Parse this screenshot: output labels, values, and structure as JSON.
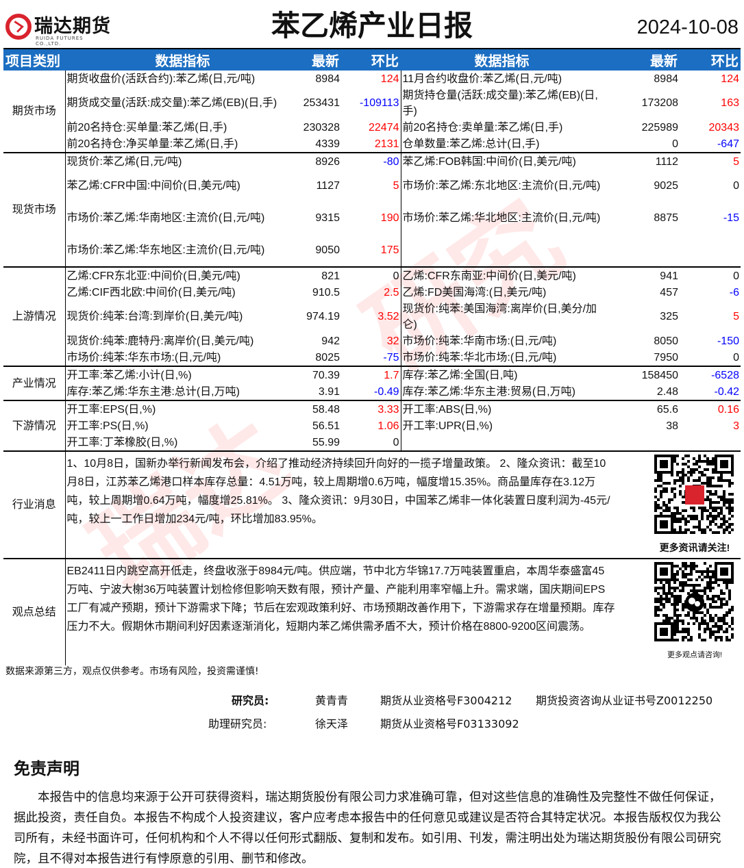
{
  "header": {
    "logo_cn": "瑞达期货",
    "logo_en": "RUIDA FUTURES CO.,LTD.",
    "title": "苯乙烯产业日报",
    "date": "2024-10-08"
  },
  "columns": [
    "项目类别",
    "数据指标",
    "最新",
    "环比",
    "数据指标",
    "最新",
    "环比"
  ],
  "colors": {
    "header_bg": "#1b6ec2",
    "up": "#ff0000",
    "down": "#0000ff"
  },
  "sections": [
    {
      "category": "期货市场",
      "rows": [
        {
          "l": [
            "期货收盘价(活跃合约):苯乙烯(日,元/吨)",
            "8984",
            "124"
          ],
          "r": [
            "11月合约收盘价:苯乙烯(日,元/吨)",
            "8984",
            "124"
          ]
        },
        {
          "l": [
            "期货成交量(活跃:成交量):苯乙烯(EB)(日,手)",
            "253431",
            "-109113"
          ],
          "r": [
            "期货持仓量(活跃:成交量):苯乙烯(EB)(日,手)",
            "173208",
            "163"
          ],
          "tall": true
        },
        {
          "l": [
            "前20名持仓:买单量:苯乙烯(日,手)",
            "230328",
            "22474"
          ],
          "r": [
            "前20名持仓:卖单量:苯乙烯(日,手)",
            "225989",
            "20343"
          ]
        },
        {
          "l": [
            "前20名持仓:净买单量:苯乙烯(日,手)",
            "4339",
            "2131"
          ],
          "r": [
            "仓单数量:苯乙烯:总计(日,手)",
            "0",
            "-647"
          ]
        }
      ]
    },
    {
      "category": "现货市场",
      "rows": [
        {
          "l": [
            "现货价:苯乙烯(日,元/吨)",
            "8926",
            "-80"
          ],
          "r": [
            "苯乙烯:FOB韩国:中间价(日,美元/吨)",
            "1112",
            "5"
          ]
        },
        {
          "l": [
            "苯乙烯:CFR中国:中间价(日,美元/吨)",
            "1127",
            "5"
          ],
          "r": [
            "市场价:苯乙烯:东北地区:主流价(日,元/吨)",
            "9025",
            "0"
          ],
          "tall": true
        },
        {
          "l": [
            "市场价:苯乙烯:华南地区:主流价(日,元/吨)",
            "9315",
            "190"
          ],
          "r": [
            "市场价:苯乙烯:华北地区:主流价(日,元/吨)",
            "8875",
            "-15"
          ],
          "tall": true
        },
        {
          "l": [
            "市场价:苯乙烯:华东地区:主流价(日,元/吨)",
            "9050",
            "175"
          ],
          "r": [
            "",
            "",
            ""
          ],
          "tall": true
        }
      ]
    },
    {
      "category": "上游情况",
      "rows": [
        {
          "l": [
            "乙烯:CFR东北亚:中间价(日,美元/吨)",
            "821",
            "0"
          ],
          "r": [
            "乙烯:CFR东南亚:中间价(日,美元/吨)",
            "941",
            "0"
          ]
        },
        {
          "l": [
            "乙烯:CIF西北欧:中间价(日,美元/吨)",
            "910.5",
            "2.5"
          ],
          "r": [
            "乙烯:FD美国海湾:(日,美元/吨)",
            "457",
            "-6"
          ]
        },
        {
          "l": [
            "现货价:纯苯:台湾:到岸价(日,美元/吨)",
            "974.19",
            "3.52"
          ],
          "r": [
            "现货价:纯苯:美国海湾:离岸价(日,美分/加仑)",
            "325",
            "5"
          ],
          "tall": true
        },
        {
          "l": [
            "现货价:纯苯:鹿特丹:离岸价(日,美元/吨)",
            "942",
            "32"
          ],
          "r": [
            "市场价:纯苯:华南市场:(日,元/吨)",
            "8050",
            "-150"
          ]
        },
        {
          "l": [
            "市场价:纯苯:华东市场:(日,元/吨)",
            "8025",
            "-75"
          ],
          "r": [
            "市场价:纯苯:华北市场:(日,元/吨)",
            "7950",
            "0"
          ]
        }
      ]
    },
    {
      "category": "产业情况",
      "rows": [
        {
          "l": [
            "开工率:苯乙烯:小计(日,%)",
            "70.39",
            "1.7"
          ],
          "r": [
            "库存:苯乙烯:全国(日,吨)",
            "158450",
            "-6528"
          ]
        },
        {
          "l": [
            "库存:苯乙烯:华东主港:总计(日,万吨)",
            "3.91",
            "-0.49"
          ],
          "r": [
            "库存:苯乙烯:华东主港:贸易(日,万吨)",
            "2.48",
            "-0.42"
          ]
        }
      ]
    },
    {
      "category": "下游情况",
      "rows": [
        {
          "l": [
            "开工率:EPS(日,%)",
            "58.48",
            "3.33"
          ],
          "r": [
            "开工率:ABS(日,%)",
            "65.6",
            "0.16"
          ]
        },
        {
          "l": [
            "开工率:PS(日,%)",
            "56.51",
            "1.06"
          ],
          "r": [
            "开工率:UPR(日,%)",
            "38",
            "3"
          ]
        },
        {
          "l": [
            "开工率:丁苯橡胶(日,%)",
            "55.99",
            "0"
          ],
          "r": [
            "",
            "",
            ""
          ]
        }
      ]
    }
  ],
  "news": {
    "category": "行业消息",
    "text": "1、10月8日，国新办举行新闻发布会，介绍了推动经济持续回升向好的一揽子增量政策。 2、隆众资讯：截至10月8日，江苏苯乙烯港口样本库存总量：4.51万吨，较上周期增0.6万吨，幅度增15.35%。商品量库存在3.12万吨，较上周期增0.64万吨，幅度增25.81%。 3、隆众资讯：9月30日，中国苯乙烯非一体化装置日度利润为-45元/吨，较上一工作日增加234元/吨，环比增加83.95%。",
    "qr_caption": "更多资讯请关注!"
  },
  "view": {
    "category": "观点总结",
    "text": "EB2411日内跳空高开低走，终盘收涨于8984元/吨。供应端，节中北方华锦17.7万吨装置重启，本周华泰盛富45万吨、宁波大榭36万吨装置计划检修但影响天数有限，预计产量、产能利用率窄幅上升。需求端，国庆期间EPS工厂有减产预期，预计下游需求下降；节后在宏观政策利好、市场预期改善作用下，下游需求存在增量预期。库存压力不大。假期休市期间利好因素逐渐消化，短期内苯乙烯供需矛盾不大，预计价格在8800-9200区间震荡。",
    "qr_caption": "更多观点请咨询!"
  },
  "footnote": "数据来源第三方，观点仅供参考。市场有风险，投资需谨慎!",
  "staff": {
    "researcher_label": "研究员:",
    "researcher": "黄青青",
    "researcher_cert": "期货从业资格号F3004212",
    "researcher_cert2": "期货投资咨询从业证书号Z0012250",
    "assistant_label": "助理研究员:",
    "assistant": "徐天泽",
    "assistant_cert": "期货从业资格号F03133092"
  },
  "disclaimer": {
    "title": "免责声明",
    "text": "本报告中的信息均来源于公开可获得资料，瑞达期货股份有限公司力求准确可靠，但对这些信息的准确性及完整性不做任何保证，据此投资，责任自负。本报告不构成个人投资建议，客户应考虑本报告中的任何意见或建议是否符合其特定状况。本报告版权仅为我公司所有，未经书面许可，任何机构和个人不得以任何形式翻版、复制和发布。如引用、刊发，需注明出处为瑞达期货股份有限公司研究院，且不得对本报告进行有悖原意的引用、删节和修改。"
  },
  "watermark": "瑞达研究"
}
